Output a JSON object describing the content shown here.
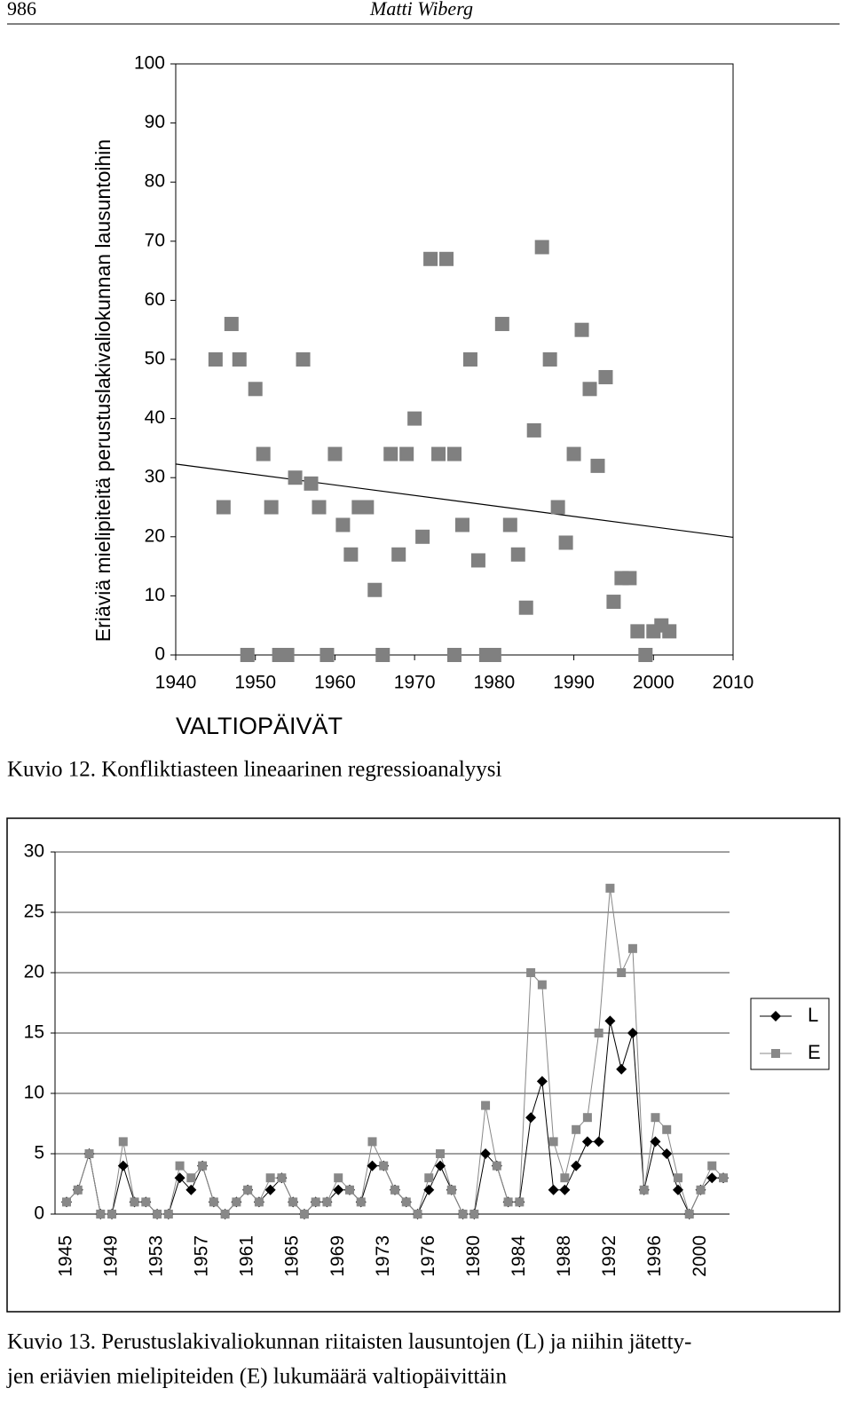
{
  "header": {
    "page_number": "986",
    "author": "Matti Wiberg"
  },
  "chart_data": [
    {
      "type": "scatter",
      "y_label": "Eriäviä mielipiteitä perustuslakivaliokunnan lausuntoihin",
      "x_label": "VALTIOPÄIVÄT",
      "caption": [
        "Kuvio 12. Konfliktiasteen lineaarinen regressioanalyysi"
      ],
      "color": "#808080",
      "xlim": [
        1940,
        2010
      ],
      "xticks": [
        1940,
        1950,
        1960,
        1970,
        1980,
        1990,
        2000,
        2010
      ],
      "ylim": [
        0,
        100
      ],
      "yticks": [
        0,
        10,
        20,
        30,
        40,
        50,
        60,
        70,
        80,
        90,
        100
      ],
      "x": [
        1945,
        1946,
        1947,
        1948,
        1949,
        1950,
        1951,
        1952,
        1953,
        1954,
        1955,
        1956,
        1957,
        1958,
        1959,
        1960,
        1961,
        1962,
        1963,
        1964,
        1965,
        1966,
        1967,
        1968,
        1969,
        1970,
        1971,
        1972,
        1973,
        1974,
        1975,
        1975,
        1976,
        1977,
        1978,
        1979,
        1980,
        1981,
        1982,
        1983,
        1984,
        1985,
        1986,
        1987,
        1988,
        1989,
        1990,
        1991,
        1992,
        1993,
        1994,
        1995,
        1996,
        1997,
        1998,
        1999,
        2000,
        2001,
        2002
      ],
      "values": [
        50,
        25,
        56,
        50,
        0,
        45,
        34,
        25,
        0,
        0,
        30,
        50,
        29,
        25,
        0,
        34,
        22,
        17,
        25,
        25,
        11,
        0,
        34,
        17,
        34,
        40,
        20,
        67,
        34,
        67,
        34,
        0,
        22,
        50,
        16,
        0,
        0,
        56,
        22,
        17,
        8,
        38,
        69,
        50,
        25,
        19,
        34,
        55,
        45,
        32,
        47,
        9,
        13,
        13,
        4,
        0,
        4,
        5,
        4
      ],
      "trendline": {
        "x": [
          1940,
          2010
        ],
        "values": [
          32.3,
          19.9
        ],
        "color": "#000000"
      }
    },
    {
      "type": "line",
      "caption": [
        "Kuvio 13. Perustuslakivaliokunnan riitaisten lausuntojen (L) ja niihin jätetty-",
        "jen eriävien mielipiteiden (E) lukumäärä valtiopäivittäin"
      ],
      "ylim": [
        0,
        30
      ],
      "yticks": [
        0,
        5,
        10,
        15,
        20,
        25,
        30
      ],
      "grid": true,
      "legend": "right",
      "categories": [
        "1945",
        null,
        null,
        null,
        "1949",
        null,
        null,
        null,
        "1953",
        null,
        null,
        null,
        "1957",
        null,
        null,
        null,
        "1961",
        null,
        null,
        null,
        "1965",
        null,
        null,
        null,
        "1969",
        null,
        null,
        null,
        "1973",
        null,
        null,
        null,
        "1976",
        null,
        null,
        null,
        "1980",
        null,
        null,
        null,
        "1984",
        null,
        null,
        null,
        "1988",
        null,
        null,
        null,
        "1992",
        null,
        null,
        null,
        "1996",
        null,
        null,
        null,
        "2000",
        null,
        null
      ],
      "series": [
        {
          "name": "L",
          "color": "#000000",
          "marker": "diamond",
          "values": [
            1,
            2,
            5,
            0,
            0,
            4,
            1,
            1,
            0,
            0,
            3,
            2,
            4,
            1,
            0,
            1,
            2,
            1,
            2,
            3,
            1,
            0,
            1,
            1,
            2,
            2,
            1,
            4,
            4,
            2,
            1,
            0,
            2,
            4,
            2,
            0,
            0,
            5,
            4,
            1,
            1,
            8,
            11,
            2,
            2,
            4,
            6,
            6,
            16,
            12,
            15,
            2,
            6,
            5,
            2,
            0,
            2,
            3,
            3
          ]
        },
        {
          "name": "E",
          "color": "#888888",
          "marker": "square",
          "values": [
            1,
            2,
            5,
            0,
            0,
            6,
            1,
            1,
            0,
            0,
            4,
            3,
            4,
            1,
            0,
            1,
            2,
            1,
            3,
            3,
            1,
            0,
            1,
            1,
            3,
            2,
            1,
            6,
            4,
            2,
            1,
            0,
            3,
            5,
            2,
            0,
            0,
            9,
            4,
            1,
            1,
            20,
            19,
            6,
            3,
            7,
            8,
            15,
            27,
            20,
            22,
            2,
            8,
            7,
            3,
            0,
            2,
            4,
            3
          ]
        }
      ]
    }
  ]
}
